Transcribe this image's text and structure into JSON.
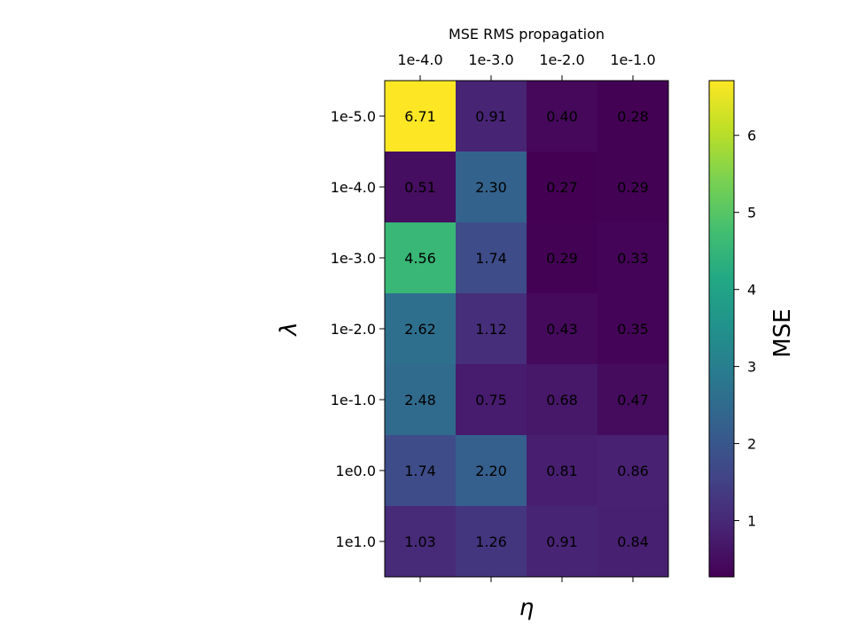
{
  "chart_data": {
    "type": "heatmap",
    "title": "MSE RMS propagation",
    "xlabel": "η",
    "ylabel": "λ",
    "x_categories": [
      "1e-4.0",
      "1e-3.0",
      "1e-2.0",
      "1e-1.0"
    ],
    "y_categories": [
      "1e-5.0",
      "1e-4.0",
      "1e-3.0",
      "1e-2.0",
      "1e-1.0",
      "1e0.0",
      "1e1.0"
    ],
    "values": [
      [
        6.71,
        0.91,
        0.4,
        0.28
      ],
      [
        0.51,
        2.3,
        0.27,
        0.29
      ],
      [
        4.56,
        1.74,
        0.29,
        0.33
      ],
      [
        2.62,
        1.12,
        0.43,
        0.35
      ],
      [
        2.48,
        0.75,
        0.68,
        0.47
      ],
      [
        1.74,
        2.2,
        0.81,
        0.86
      ],
      [
        1.03,
        1.26,
        0.91,
        0.84
      ]
    ],
    "colormap": "viridis",
    "colorbar": {
      "label": "MSE",
      "range": [
        0.27,
        6.71
      ],
      "ticks": [
        1,
        2,
        3,
        4,
        5,
        6
      ]
    },
    "x_tick_position": "top",
    "grid": false
  }
}
